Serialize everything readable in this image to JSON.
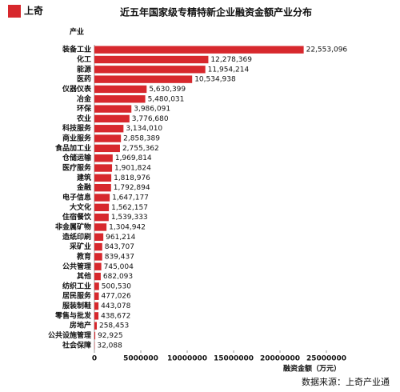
{
  "logo": "上奇",
  "source": "数据来源：上奇产业通",
  "chart_data": {
    "type": "bar",
    "orientation": "horizontal",
    "title": "近五年国家级专精特新企业融资金额产业分布",
    "y_label": "产业",
    "x_label": "融资金额（万元）",
    "categories": [
      "装备工业",
      "化工",
      "能源",
      "医药",
      "仪器仪表",
      "冶金",
      "环保",
      "农业",
      "科技服务",
      "商业服务",
      "食品加工业",
      "仓储运输",
      "医疗服务",
      "建筑",
      "金融",
      "电子信息",
      "大文化",
      "住宿餐饮",
      "非金属矿物",
      "造纸印刷",
      "采矿业",
      "教育",
      "公共管理",
      "其他",
      "纺织工业",
      "居民服务",
      "服装制鞋",
      "零售与批发",
      "房地产",
      "公共设施管理",
      "社会保障"
    ],
    "values": [
      22553096,
      12278369,
      11954214,
      10534938,
      5630399,
      5480031,
      3986091,
      3776680,
      3134010,
      2858389,
      2755362,
      1969814,
      1901824,
      1818976,
      1792894,
      1647177,
      1562157,
      1539333,
      1304942,
      961214,
      843707,
      839437,
      745004,
      682093,
      500530,
      477026,
      443078,
      438672,
      258453,
      92925,
      32088
    ],
    "value_labels": [
      "22,553,096",
      "12,278,369",
      "11,954,214",
      "10,534,938",
      "5,630,399",
      "5,480,031",
      "3,986,091",
      "3,776,680",
      "3,134,010",
      "2,858,389",
      "2,755,362",
      "1,969,814",
      "1,901,824",
      "1,818,976",
      "1,792,894",
      "1,647,177",
      "1,562,157",
      "1,539,333",
      "1,304,942",
      "961,214",
      "843,707",
      "839,437",
      "745,004",
      "682,093",
      "500,530",
      "477,026",
      "443,078",
      "438,672",
      "258,453",
      "92,925",
      "32,088"
    ],
    "color": "#d7282d",
    "xlim": [
      0,
      25000000
    ],
    "xticks": [
      0,
      5000000,
      10000000,
      15000000,
      20000000,
      25000000
    ]
  }
}
